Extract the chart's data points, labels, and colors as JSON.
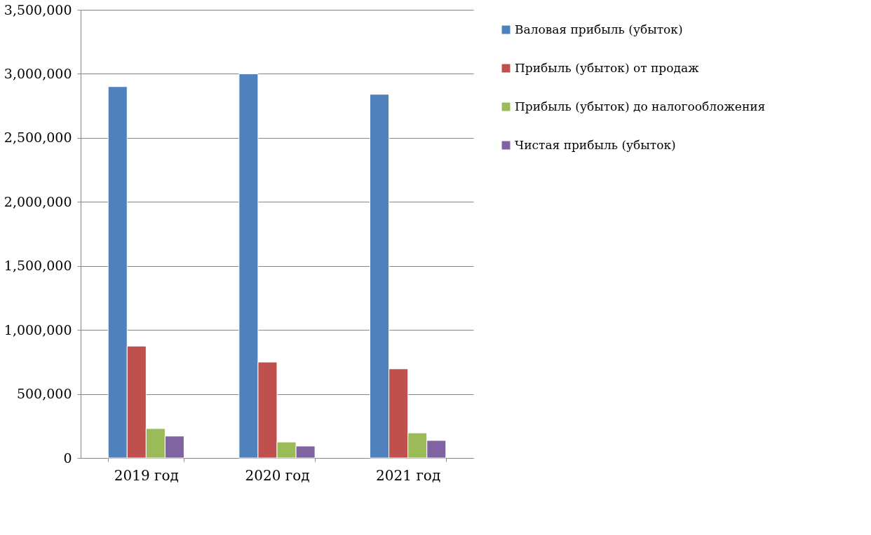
{
  "chart_data": {
    "type": "bar",
    "categories": [
      "2019 год",
      "2020 год",
      "2021 год"
    ],
    "series": [
      {
        "name": "Валовая прибыль (убыток)",
        "color": "#4f81bd",
        "values": [
          2900000,
          3000000,
          2840000
        ]
      },
      {
        "name": "Прибыль (убыток) от продаж",
        "color": "#c0504d",
        "values": [
          874000,
          749000,
          696000
        ]
      },
      {
        "name": "Прибыль (убыток) до налогообложения",
        "color": "#9bbb59",
        "values": [
          230000,
          125000,
          196000
        ]
      },
      {
        "name": "Чистая прибыль (убыток)",
        "color": "#8064a2",
        "values": [
          171000,
          93000,
          137000
        ]
      }
    ],
    "ylim": [
      0,
      3500000
    ],
    "yticks": [
      0,
      {
        "value": 500000,
        "label": "500,000"
      },
      {
        "value": 1000000,
        "label": "1,000,000"
      },
      {
        "value": 1500000,
        "label": "1,500,000"
      },
      {
        "value": 2000000,
        "label": "2,000,000"
      },
      {
        "value": 2500000,
        "label": "2,500,000"
      },
      {
        "value": 3000000,
        "label": "3,000,000"
      },
      {
        "value": 3500000,
        "label": "3,500,000"
      }
    ],
    "grid": "y",
    "legend": "right"
  }
}
